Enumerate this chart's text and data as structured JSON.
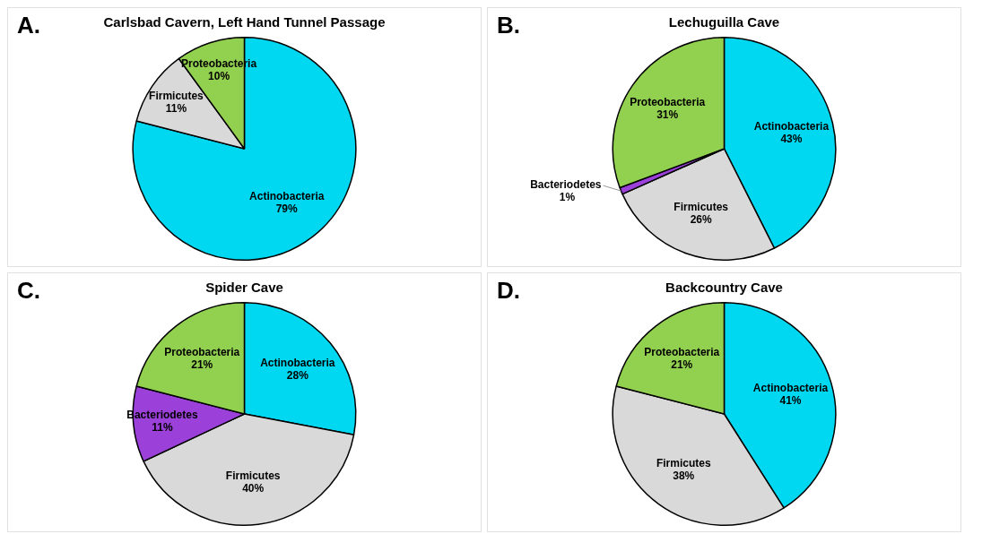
{
  "chart_data": [
    {
      "type": "pie",
      "title": "Carlsbad Cavern, Left Hand Tunnel Passage",
      "annotations": [
        "A."
      ],
      "categories": [
        "Actinobacteria",
        "Firmicutes",
        "Proteobacteria"
      ],
      "values": [
        79,
        11,
        10
      ],
      "colors": [
        "#00d7f0",
        "#d9d9d9",
        "#92d050"
      ],
      "value_labels": [
        "79%",
        "11%",
        "10%"
      ]
    },
    {
      "type": "pie",
      "title": "Lechuguilla Cave",
      "annotations": [
        "B."
      ],
      "categories": [
        "Actinobacteria",
        "Firmicutes",
        "Bacteriodetes",
        "Proteobacteria"
      ],
      "values": [
        43,
        26,
        1,
        31
      ],
      "colors": [
        "#00d7f0",
        "#d9d9d9",
        "#9b40d8",
        "#92d050"
      ],
      "value_labels": [
        "43%",
        "26%",
        "1%",
        "31%"
      ]
    },
    {
      "type": "pie",
      "title": "Spider Cave",
      "annotations": [
        "C."
      ],
      "categories": [
        "Actinobacteria",
        "Firmicutes",
        "Bacteriodetes",
        "Proteobacteria"
      ],
      "values": [
        28,
        40,
        11,
        21
      ],
      "colors": [
        "#00d7f0",
        "#d9d9d9",
        "#9b40d8",
        "#92d050"
      ],
      "value_labels": [
        "28%",
        "40%",
        "11%",
        "21%"
      ]
    },
    {
      "type": "pie",
      "title": "Backcountry Cave",
      "annotations": [
        "D."
      ],
      "categories": [
        "Actinobacteria",
        "Firmicutes",
        "Proteobacteria"
      ],
      "values": [
        41,
        38,
        21
      ],
      "colors": [
        "#00d7f0",
        "#d9d9d9",
        "#92d050"
      ],
      "value_labels": [
        "41%",
        "38%",
        "21%"
      ]
    }
  ]
}
